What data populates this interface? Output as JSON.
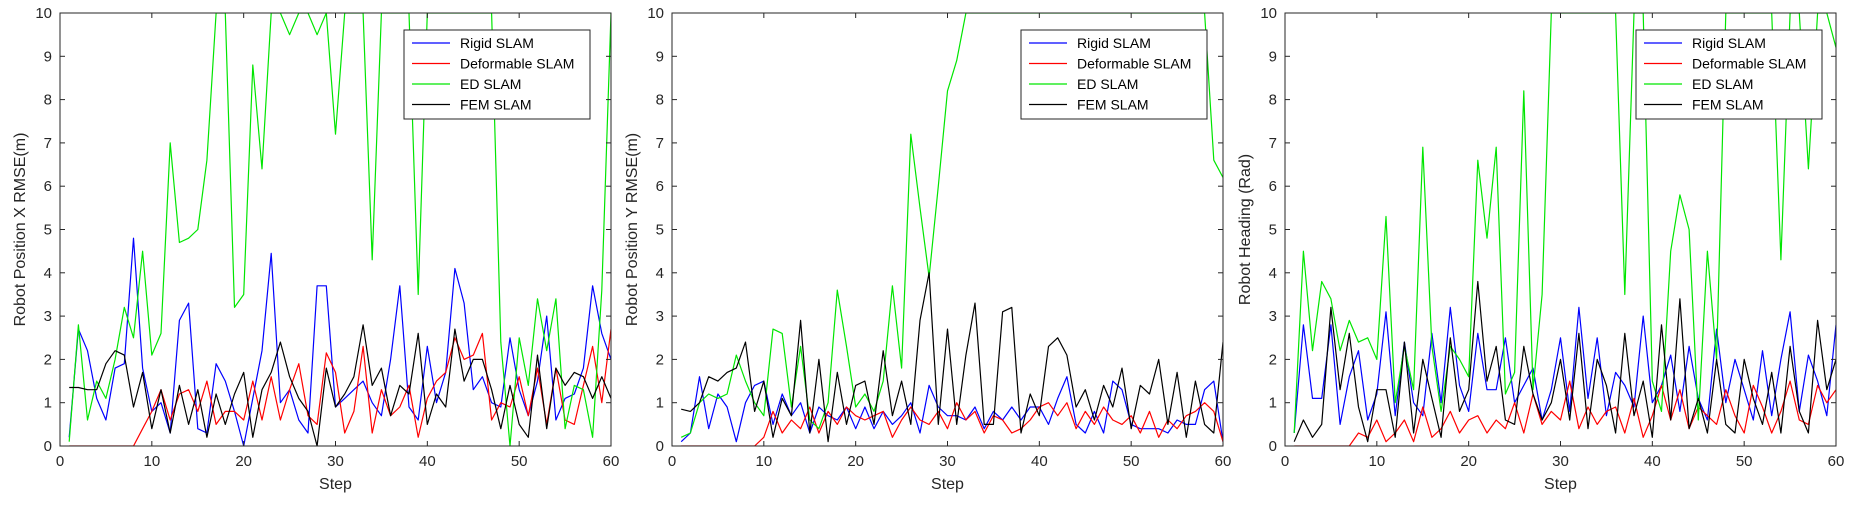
{
  "colors": {
    "rigid": "#0000ff",
    "deformable": "#ff0000",
    "ed": "#00e600",
    "fem": "#000000",
    "axis": "#262626"
  },
  "chart_data": [
    {
      "type": "line",
      "xlabel": "Step",
      "ylabel": "Robot Position X RMSE(m)",
      "xlim": [
        0,
        60
      ],
      "ylim": [
        0,
        10
      ],
      "xticks": [
        "0",
        "10",
        "20",
        "30",
        "40",
        "50",
        "60"
      ],
      "yticks": [
        "0",
        "1",
        "2",
        "3",
        "4",
        "5",
        "6",
        "7",
        "8",
        "9",
        "10"
      ],
      "legend_position": "top-right",
      "x": [
        1,
        2,
        3,
        4,
        5,
        6,
        7,
        8,
        9,
        10,
        11,
        12,
        13,
        14,
        15,
        16,
        17,
        18,
        19,
        20,
        21,
        22,
        23,
        24,
        25,
        26,
        27,
        28,
        29,
        30,
        31,
        32,
        33,
        34,
        35,
        36,
        37,
        38,
        39,
        40,
        41,
        42,
        43,
        44,
        45,
        46,
        47,
        48,
        49,
        50,
        51,
        52,
        53,
        54,
        55,
        56,
        57,
        58,
        59,
        60
      ],
      "series": [
        {
          "name": "Rigid SLAM",
          "color_key": "rigid",
          "values": [
            0.2,
            2.7,
            2.2,
            1.1,
            0.6,
            1.8,
            1.9,
            4.8,
            1.8,
            0.8,
            1.0,
            0.3,
            2.9,
            3.3,
            0.4,
            0.3,
            1.9,
            1.5,
            0.8,
            0.0,
            1.1,
            2.2,
            4.45,
            1.0,
            1.3,
            0.6,
            0.3,
            3.7,
            3.7,
            0.9,
            1.1,
            1.3,
            1.5,
            1.0,
            0.7,
            2.0,
            3.7,
            0.9,
            0.6,
            2.3,
            1.0,
            1.7,
            4.1,
            3.3,
            1.3,
            1.6,
            1.0,
            0.9,
            2.5,
            1.3,
            0.7,
            1.5,
            3.0,
            0.6,
            1.1,
            1.2,
            1.8,
            3.7,
            2.6,
            2.0
          ]
        },
        {
          "name": "Deformable SLAM",
          "color_key": "deformable",
          "values": [
            0,
            0,
            0,
            0,
            0,
            0,
            0,
            0,
            0.4,
            0.8,
            1.3,
            0.6,
            1.2,
            1.3,
            0.8,
            1.5,
            0.5,
            0.8,
            0.8,
            0.6,
            1.5,
            0.6,
            1.6,
            0.6,
            1.3,
            1.9,
            0.7,
            0.5,
            2.15,
            1.7,
            0.3,
            0.8,
            2.3,
            0.3,
            1.3,
            0.7,
            0.9,
            1.4,
            0.2,
            1.1,
            1.5,
            1.7,
            2.5,
            2.0,
            2.1,
            2.6,
            0.6,
            1.0,
            0.9,
            1.6,
            0.7,
            1.8,
            0.5,
            1.8,
            0.6,
            0.5,
            1.4,
            2.3,
            1.0,
            2.7
          ]
        },
        {
          "name": "ED SLAM",
          "color_key": "ed",
          "values": [
            0.1,
            2.8,
            0.6,
            1.5,
            1.1,
            2.0,
            3.2,
            2.5,
            4.5,
            2.1,
            2.6,
            7.0,
            4.7,
            4.8,
            5.0,
            6.6,
            10,
            10,
            3.2,
            3.5,
            8.8,
            6.4,
            10,
            10,
            9.5,
            10,
            10,
            9.5,
            10,
            7.2,
            10,
            10,
            10,
            4.3,
            10,
            10,
            10,
            10,
            3.5,
            10,
            10,
            10,
            10,
            10,
            10,
            10,
            10,
            2.4,
            0,
            2.5,
            1.4,
            3.4,
            2.2,
            3.4,
            0.4,
            1.4,
            1.3,
            0.2,
            3.6,
            10
          ]
        },
        {
          "name": "FEM SLAM",
          "color_key": "fem",
          "values": [
            1.35,
            1.35,
            1.3,
            1.3,
            1.9,
            2.2,
            2.1,
            0.9,
            1.7,
            0.4,
            1.3,
            0.3,
            1.4,
            0.5,
            1.3,
            0.2,
            1.2,
            0.5,
            1.2,
            1.7,
            0.2,
            1.3,
            1.7,
            2.4,
            1.6,
            1.1,
            0.8,
            0.0,
            1.8,
            0.9,
            1.2,
            1.6,
            2.8,
            1.4,
            1.8,
            0.7,
            1.4,
            1.2,
            2.6,
            0.5,
            1.2,
            0.9,
            2.7,
            1.5,
            2.0,
            2.0,
            1.3,
            0.4,
            1.4,
            0.5,
            0.2,
            2.1,
            0.4,
            1.8,
            1.4,
            1.7,
            1.6,
            1.1,
            1.6,
            1.1
          ]
        }
      ]
    },
    {
      "type": "line",
      "xlabel": "Step",
      "ylabel": "Robot Position Y RMSE(m)",
      "xlim": [
        0,
        60
      ],
      "ylim": [
        0,
        10
      ],
      "xticks": [
        "0",
        "10",
        "20",
        "30",
        "40",
        "50",
        "60"
      ],
      "yticks": [
        "0",
        "1",
        "2",
        "3",
        "4",
        "5",
        "6",
        "7",
        "8",
        "9",
        "10"
      ],
      "legend_position": "top-right",
      "x": [
        1,
        2,
        3,
        4,
        5,
        6,
        7,
        8,
        9,
        10,
        11,
        12,
        13,
        14,
        15,
        16,
        17,
        18,
        19,
        20,
        21,
        22,
        23,
        24,
        25,
        26,
        27,
        28,
        29,
        30,
        31,
        32,
        33,
        34,
        35,
        36,
        37,
        38,
        39,
        40,
        41,
        42,
        43,
        44,
        45,
        46,
        47,
        48,
        49,
        50,
        51,
        52,
        53,
        54,
        55,
        56,
        57,
        58,
        59,
        60
      ],
      "series": [
        {
          "name": "Rigid SLAM",
          "color_key": "rigid",
          "values": [
            0.1,
            0.3,
            1.6,
            0.4,
            1.2,
            0.9,
            0.1,
            1.0,
            1.4,
            1.5,
            0.5,
            1.2,
            0.7,
            1.0,
            0.3,
            0.9,
            0.7,
            0.6,
            0.9,
            0.4,
            0.9,
            0.4,
            0.8,
            0.5,
            0.7,
            1.0,
            0.3,
            1.4,
            0.9,
            0.7,
            0.7,
            0.6,
            0.9,
            0.4,
            0.8,
            0.6,
            0.9,
            0.6,
            0.9,
            0.9,
            0.5,
            1.1,
            1.6,
            0.5,
            0.3,
            0.8,
            0.3,
            1.5,
            1.3,
            0.5,
            0.4,
            0.4,
            0.4,
            0.3,
            0.6,
            0.5,
            0.5,
            1.3,
            1.5,
            0.1
          ]
        },
        {
          "name": "Deformable SLAM",
          "color_key": "deformable",
          "values": [
            0,
            0,
            0,
            0,
            0,
            0,
            0,
            0,
            0,
            0.2,
            0.8,
            0.3,
            0.6,
            0.4,
            0.9,
            0.3,
            0.8,
            0.5,
            0.9,
            0.7,
            0.6,
            0.7,
            0.8,
            0.2,
            0.6,
            0.9,
            0.6,
            0.5,
            0.8,
            0.4,
            1.0,
            0.6,
            0.8,
            0.3,
            0.7,
            0.6,
            0.3,
            0.4,
            0.6,
            0.9,
            1.0,
            0.7,
            1.0,
            0.4,
            0.8,
            0.5,
            0.9,
            0.6,
            0.5,
            0.7,
            0.3,
            0.8,
            0.2,
            0.6,
            0.4,
            0.7,
            0.8,
            1.0,
            0.8,
            0.1
          ]
        },
        {
          "name": "ED SLAM",
          "color_key": "ed",
          "values": [
            0.2,
            0.3,
            1.0,
            1.2,
            1.1,
            1.2,
            2.1,
            1.5,
            1.0,
            0.7,
            2.7,
            2.6,
            0.9,
            2.3,
            0.6,
            0.4,
            1.0,
            3.6,
            2.3,
            0.9,
            1.2,
            0.8,
            1.5,
            3.7,
            1.8,
            7.2,
            5.5,
            3.9,
            6.0,
            8.2,
            8.9,
            10,
            10,
            10,
            10,
            10,
            10,
            10,
            10,
            10,
            10,
            10,
            10,
            10,
            10,
            10,
            10,
            10,
            10,
            10,
            10,
            10,
            10,
            10,
            10,
            10,
            10,
            10,
            6.6,
            6.2
          ]
        },
        {
          "name": "FEM SLAM",
          "color_key": "fem",
          "values": [
            0.85,
            0.8,
            1.0,
            1.6,
            1.5,
            1.7,
            1.8,
            2.4,
            0.8,
            1.5,
            0.2,
            1.1,
            0.7,
            2.9,
            0.3,
            2.0,
            0.1,
            1.7,
            0.5,
            1.4,
            1.5,
            0.5,
            2.2,
            0.7,
            1.5,
            0.5,
            2.9,
            4.0,
            0.5,
            2.7,
            0.5,
            2.1,
            3.3,
            0.5,
            0.5,
            3.1,
            3.2,
            0.3,
            1.2,
            0.7,
            2.3,
            2.5,
            2.1,
            0.9,
            1.3,
            0.6,
            1.4,
            0.9,
            1.8,
            0.4,
            1.4,
            1.2,
            2.0,
            0.5,
            1.7,
            0.2,
            1.5,
            0.5,
            0.3,
            2.4
          ]
        }
      ]
    },
    {
      "type": "line",
      "xlabel": "Step",
      "ylabel": "Robot Heading (Rad)",
      "xlim": [
        0,
        60
      ],
      "ylim": [
        0,
        10
      ],
      "xticks": [
        "0",
        "10",
        "20",
        "30",
        "40",
        "50",
        "60"
      ],
      "yticks": [
        "0",
        "1",
        "2",
        "3",
        "4",
        "5",
        "6",
        "7",
        "8",
        "9",
        "10"
      ],
      "legend_position": "top-right",
      "x": [
        1,
        2,
        3,
        4,
        5,
        6,
        7,
        8,
        9,
        10,
        11,
        12,
        13,
        14,
        15,
        16,
        17,
        18,
        19,
        20,
        21,
        22,
        23,
        24,
        25,
        26,
        27,
        28,
        29,
        30,
        31,
        32,
        33,
        34,
        35,
        36,
        37,
        38,
        39,
        40,
        41,
        42,
        43,
        44,
        45,
        46,
        47,
        48,
        49,
        50,
        51,
        52,
        53,
        54,
        55,
        56,
        57,
        58,
        59,
        60
      ],
      "series": [
        {
          "name": "Rigid SLAM",
          "color_key": "rigid",
          "values": [
            0.3,
            2.8,
            1.1,
            1.1,
            2.8,
            0.5,
            1.6,
            2.2,
            0.6,
            1.2,
            3.1,
            0.7,
            2.4,
            1.0,
            0.7,
            2.6,
            1.0,
            3.2,
            1.4,
            0.8,
            2.6,
            1.3,
            1.3,
            2.5,
            1.0,
            1.4,
            1.8,
            0.6,
            1.3,
            2.5,
            0.8,
            3.2,
            1.1,
            2.5,
            0.7,
            1.7,
            1.4,
            0.9,
            3.0,
            1.0,
            1.4,
            2.1,
            0.8,
            2.3,
            1.1,
            0.6,
            2.7,
            1.0,
            2.0,
            1.3,
            0.6,
            2.2,
            0.7,
            2.0,
            3.1,
            0.8,
            2.1,
            1.5,
            0.7,
            2.8
          ]
        },
        {
          "name": "Deformable SLAM",
          "color_key": "deformable",
          "values": [
            0,
            0,
            0,
            0,
            0,
            0,
            0,
            0.3,
            0.2,
            0.6,
            0.1,
            0.3,
            0.6,
            0.1,
            0.9,
            0.2,
            0.4,
            0.8,
            0.3,
            0.6,
            0.7,
            0.3,
            0.6,
            0.4,
            1.0,
            0.3,
            1.2,
            0.5,
            0.8,
            0.6,
            1.5,
            0.4,
            0.9,
            0.5,
            0.8,
            0.9,
            0.3,
            1.1,
            0.2,
            0.7,
            1.4,
            0.6,
            1.3,
            0.4,
            0.9,
            0.7,
            0.5,
            1.3,
            0.7,
            0.3,
            1.4,
            0.9,
            0.3,
            0.8,
            1.5,
            0.6,
            0.5,
            1.4,
            1.0,
            1.3
          ]
        },
        {
          "name": "ED SLAM",
          "color_key": "ed",
          "values": [
            0.3,
            4.5,
            2.2,
            3.8,
            3.4,
            2.2,
            2.9,
            2.4,
            2.5,
            2.0,
            5.3,
            1.0,
            2.3,
            1.3,
            6.9,
            2.3,
            0.8,
            2.3,
            2.0,
            1.6,
            6.6,
            4.8,
            6.9,
            1.2,
            1.7,
            8.2,
            1.3,
            3.5,
            10,
            10,
            10,
            10,
            10,
            10,
            10,
            10,
            3.5,
            10,
            10,
            1.5,
            0.8,
            4.5,
            5.8,
            5.0,
            0.6,
            4.5,
            2.0,
            10,
            10,
            10,
            10,
            10,
            10,
            4.3,
            10,
            10,
            6.4,
            10,
            10,
            9.2
          ]
        },
        {
          "name": "FEM SLAM",
          "color_key": "fem",
          "values": [
            0.1,
            0.6,
            0.2,
            0.5,
            3.2,
            1.3,
            2.6,
            0.9,
            0.1,
            1.3,
            1.3,
            0.2,
            2.4,
            0.3,
            2.0,
            1.1,
            0.2,
            2.5,
            0.8,
            1.3,
            3.8,
            1.5,
            2.3,
            0.6,
            0.5,
            2.3,
            1.2,
            0.6,
            1.0,
            2.0,
            0.6,
            2.6,
            0.4,
            2.0,
            1.4,
            0.3,
            2.6,
            0.7,
            1.5,
            0.2,
            2.8,
            0.6,
            3.4,
            0.4,
            1.1,
            0.3,
            2.0,
            0.5,
            0.3,
            2.0,
            1.1,
            0.5,
            1.7,
            0.3,
            2.3,
            0.8,
            0.3,
            2.9,
            1.3,
            2.0
          ]
        }
      ]
    }
  ]
}
